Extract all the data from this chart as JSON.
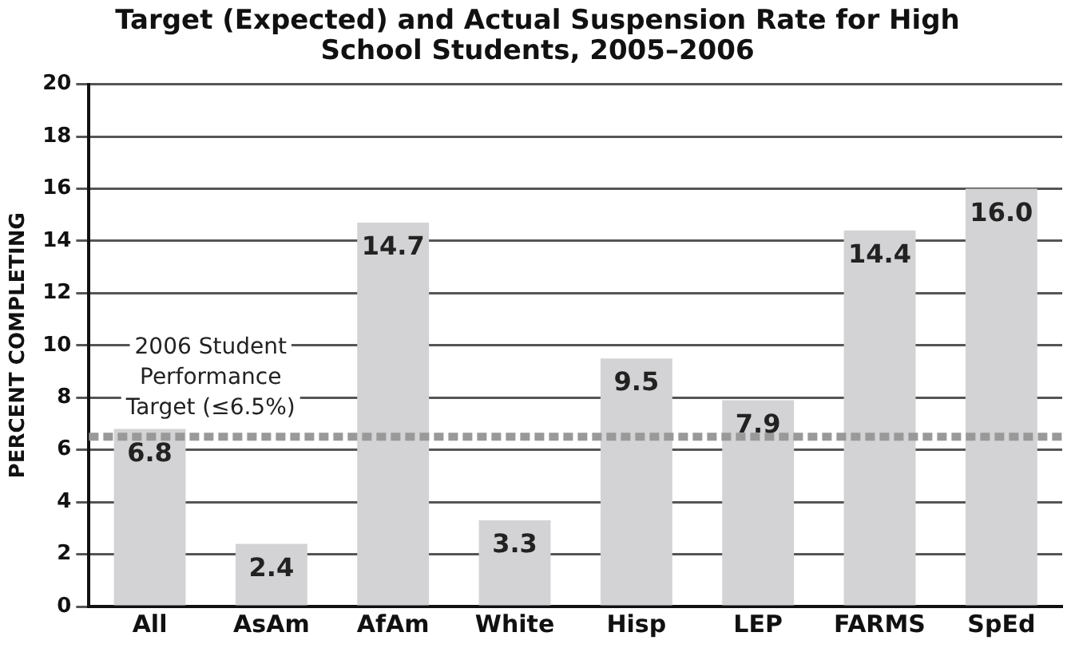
{
  "chart_data": {
    "type": "bar",
    "title": "Target (Expected) and Actual Suspension Rate for High School Students, 2005–2006",
    "ylabel": "PERCENT COMPLETING",
    "categories": [
      "All",
      "AsAm",
      "AfAm",
      "White",
      "Hisp",
      "LEP",
      "FARMS",
      "SpEd"
    ],
    "values": [
      6.8,
      2.4,
      14.7,
      3.3,
      9.5,
      7.9,
      14.4,
      16.0
    ],
    "value_labels": [
      "6.8",
      "2.4",
      "14.7",
      "3.3",
      "9.5",
      "7.9",
      "14.4",
      "16.0"
    ],
    "color": "#d3d3d5",
    "ylim": [
      0,
      20
    ],
    "yticks": [
      0,
      2,
      4,
      6,
      8,
      10,
      12,
      14,
      16,
      18,
      20
    ],
    "grid": "y",
    "legend": false,
    "ref_lines": [
      {
        "axis": "y",
        "value": 6.5,
        "label": "2006 Student Performance Target (≤6.5%)",
        "color": "#999999",
        "line_style": "dotted"
      }
    ]
  }
}
